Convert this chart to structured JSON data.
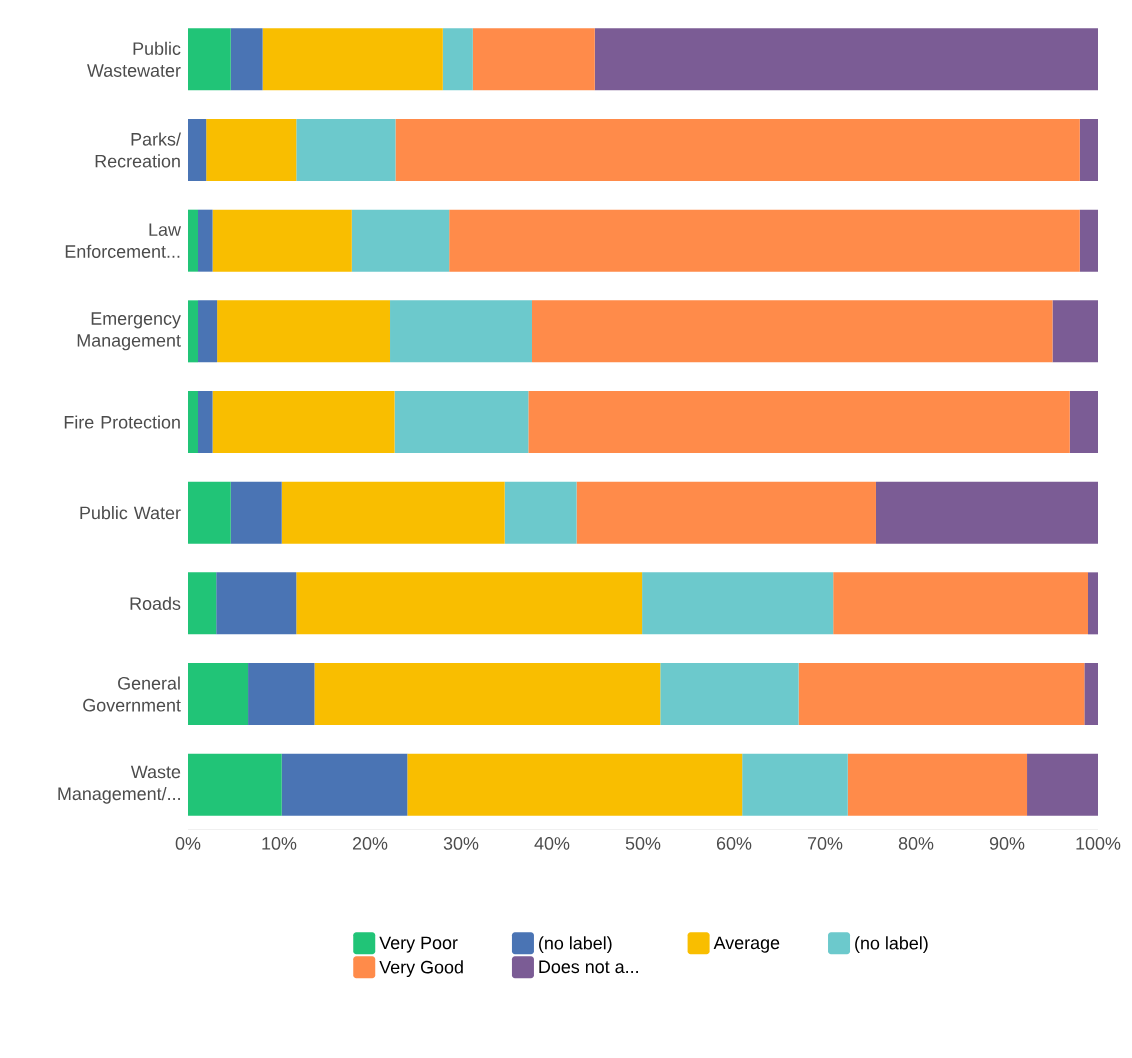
{
  "chart_data": {
    "type": "bar",
    "orientation": "horizontal",
    "stacked": true,
    "legend": "bottom",
    "categories": [
      "Public Wastewater",
      "Parks/ Recreation",
      "Law Enforcement...",
      "Emergency Management",
      "Fire Protection",
      "Public Water",
      "Roads",
      "General Government",
      "Waste Management/..."
    ],
    "xlim": [
      0,
      100
    ],
    "xticks": [
      {
        "value": 0,
        "label": "0%"
      },
      {
        "value": 10,
        "label": "10%"
      },
      {
        "value": 20,
        "label": "20%"
      },
      {
        "value": 30,
        "label": "30%"
      },
      {
        "value": 40,
        "label": "40%"
      },
      {
        "value": 50,
        "label": "50%"
      },
      {
        "value": 60,
        "label": "60%"
      },
      {
        "value": 70,
        "label": "70%"
      },
      {
        "value": 80,
        "label": "80%"
      },
      {
        "value": 90,
        "label": "90%"
      },
      {
        "value": 100,
        "label": "100%"
      }
    ],
    "series": [
      {
        "name": "Very Poor",
        "color": "#21c477",
        "values": [
          4.7,
          0,
          1.1,
          1.1,
          1.1,
          4.7,
          3.1,
          6.6,
          10.3
        ]
      },
      {
        "name": "(no label)",
        "color": "#4a74b4",
        "values": [
          3.5,
          2.0,
          1.6,
          2.1,
          1.6,
          5.6,
          8.8,
          7.3,
          13.8
        ]
      },
      {
        "name": "Average",
        "color": "#f9be00",
        "values": [
          19.8,
          9.9,
          15.3,
          19.0,
          20.0,
          24.5,
          38.0,
          38.0,
          36.8
        ]
      },
      {
        "name": "(no label)",
        "color": "#6cc9cc",
        "values": [
          3.3,
          10.9,
          10.7,
          15.6,
          14.7,
          7.9,
          21.0,
          15.2,
          11.6
        ]
      },
      {
        "name": "Very Good",
        "color": "#ff8b4a",
        "values": [
          13.4,
          75.2,
          69.3,
          57.2,
          59.5,
          32.9,
          28.0,
          31.4,
          19.7
        ]
      },
      {
        "name": "Does not a...",
        "color": "#7b5c95",
        "values": [
          55.3,
          2.0,
          2.0,
          5.0,
          3.1,
          24.4,
          1.1,
          1.5,
          7.8
        ]
      }
    ]
  }
}
